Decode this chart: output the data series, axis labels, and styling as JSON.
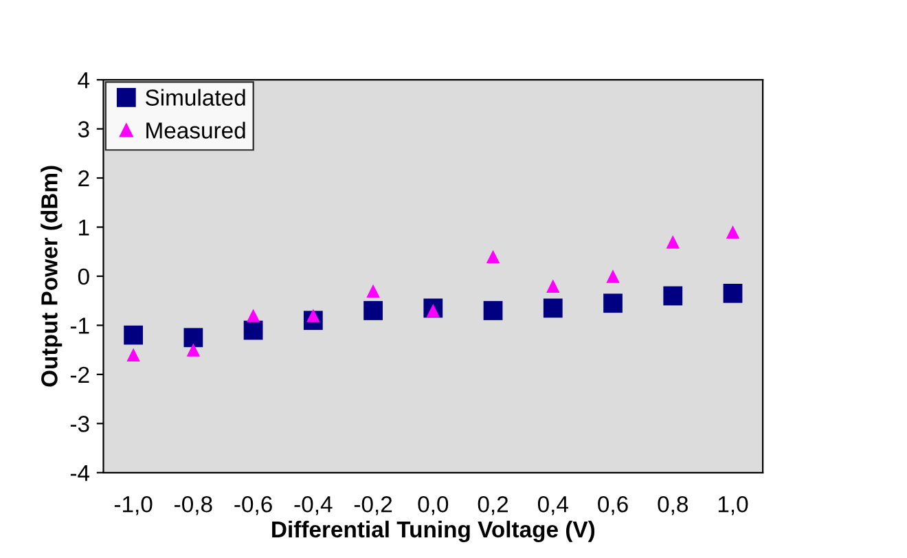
{
  "chart_data": {
    "type": "scatter",
    "xlabel": "Differential Tuning Voltage (V)",
    "ylabel": "Output Power (dBm)",
    "categories": [
      "-1,0",
      "-0,8",
      "-0,6",
      "-0,4",
      "-0,2",
      "0,0",
      "0,2",
      "0,4",
      "0,6",
      "0,8",
      "1,0"
    ],
    "series": [
      {
        "name": "Simulated",
        "color": "#000080",
        "marker": "square",
        "values": [
          -1.2,
          -1.25,
          -1.1,
          -0.9,
          -0.7,
          -0.65,
          -0.7,
          -0.65,
          -0.55,
          -0.4,
          -0.35
        ]
      },
      {
        "name": "Measured",
        "color": "#ff00ff",
        "marker": "triangle",
        "values": [
          -1.6,
          -1.5,
          -0.8,
          -0.8,
          -0.3,
          -0.7,
          0.4,
          -0.2,
          0.0,
          0.7,
          0.9
        ]
      }
    ],
    "ylim": [
      -4,
      4
    ],
    "yticks": [
      -4,
      -3,
      -2,
      -1,
      0,
      1,
      2,
      3,
      4
    ],
    "grid": false,
    "legend": "top left"
  }
}
